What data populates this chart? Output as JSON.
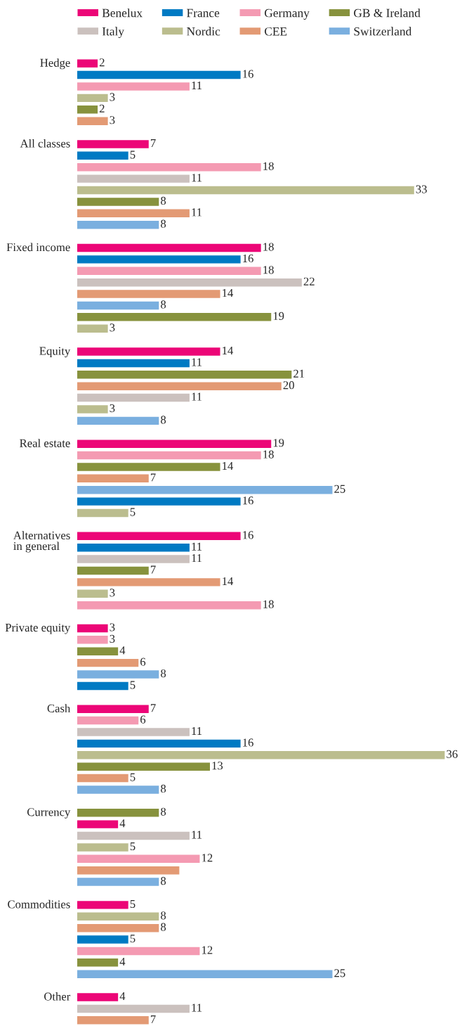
{
  "chart_data": {
    "type": "bar",
    "orientation": "horizontal",
    "legend": "top",
    "categories": [
      "Hedge",
      null,
      null,
      null,
      null,
      null,
      null,
      "All classes",
      null,
      null,
      null,
      null,
      null,
      null,
      null,
      null,
      "Fixed income",
      null,
      null,
      null,
      null,
      null,
      null,
      null,
      null,
      "Equity",
      null,
      null,
      null,
      null,
      null,
      null,
      null,
      "Real estate",
      null,
      null,
      null,
      null,
      null,
      null,
      null,
      "Alternatives\nin general",
      null,
      null,
      null,
      null,
      null,
      null,
      null,
      "Private equity",
      null,
      null,
      null,
      null,
      null,
      null,
      "Cash",
      null,
      null,
      null,
      null,
      null,
      null,
      null,
      null,
      "Currency",
      null,
      null,
      null,
      null,
      null,
      null,
      null,
      "Commodities",
      null,
      null,
      null,
      null,
      null,
      null,
      null,
      "Other",
      null,
      null
    ],
    "series": [
      {
        "name": "Benelux",
        "color": "#ec0677",
        "values": [
          2,
          null,
          null,
          null,
          null,
          null,
          null,
          7,
          null,
          null,
          null,
          null,
          null,
          null,
          null,
          null,
          18,
          null,
          null,
          null,
          null,
          null,
          null,
          null,
          null,
          14,
          null,
          null,
          null,
          null,
          null,
          null,
          null,
          19,
          null,
          null,
          null,
          null,
          null,
          null,
          null,
          16,
          null,
          null,
          null,
          null,
          null,
          null,
          null,
          3,
          null,
          null,
          null,
          null,
          null,
          null,
          7,
          null,
          null,
          null,
          null,
          null,
          null,
          null,
          null,
          null,
          4,
          null,
          null,
          null,
          null,
          null,
          null,
          5,
          null,
          null,
          null,
          null,
          null,
          null,
          null,
          4,
          null,
          null
        ],
        "value_labels": [
          "2",
          null,
          null,
          null,
          null,
          null,
          null,
          "7",
          null,
          null,
          null,
          null,
          null,
          null,
          null,
          null,
          "18",
          null,
          null,
          null,
          null,
          null,
          null,
          null,
          null,
          "14",
          null,
          null,
          null,
          null,
          null,
          null,
          null,
          "19",
          null,
          null,
          null,
          null,
          null,
          null,
          null,
          "16",
          null,
          null,
          null,
          null,
          null,
          null,
          null,
          "3",
          null,
          null,
          null,
          null,
          null,
          null,
          "7",
          null,
          null,
          null,
          null,
          null,
          null,
          null,
          null,
          null,
          "4",
          null,
          null,
          null,
          null,
          null,
          null,
          "5",
          null,
          null,
          null,
          null,
          null,
          null,
          null,
          "4",
          null,
          null
        ]
      },
      {
        "name": "France",
        "color": "#007ac3",
        "values": [
          null,
          16,
          null,
          null,
          null,
          null,
          null,
          null,
          5,
          null,
          null,
          null,
          null,
          null,
          null,
          null,
          null,
          16,
          null,
          null,
          null,
          null,
          null,
          null,
          null,
          null,
          11,
          null,
          null,
          null,
          null,
          null,
          null,
          null,
          null,
          null,
          null,
          null,
          16,
          null,
          null,
          null,
          11,
          null,
          null,
          null,
          null,
          null,
          null,
          null,
          null,
          null,
          null,
          null,
          5,
          null,
          null,
          null,
          null,
          16,
          null,
          null,
          null,
          null,
          null,
          null,
          null,
          null,
          null,
          null,
          null,
          null,
          null,
          null,
          null,
          null,
          5,
          null,
          null,
          null,
          null,
          null,
          null,
          null
        ],
        "value_labels": [
          null,
          "16",
          null,
          null,
          null,
          null,
          null,
          null,
          "5",
          null,
          null,
          null,
          null,
          null,
          null,
          null,
          null,
          "16",
          null,
          null,
          null,
          null,
          null,
          null,
          null,
          null,
          "11",
          null,
          null,
          null,
          null,
          null,
          null,
          null,
          null,
          null,
          null,
          null,
          "16",
          null,
          null,
          null,
          "11",
          null,
          null,
          null,
          null,
          null,
          null,
          null,
          null,
          null,
          null,
          null,
          "5",
          null,
          null,
          null,
          null,
          "16",
          null,
          null,
          null,
          null,
          null,
          null,
          null,
          null,
          null,
          null,
          null,
          null,
          null,
          null,
          null,
          null,
          "5",
          null,
          null,
          null,
          null,
          null,
          null,
          null
        ]
      },
      {
        "name": "Germany",
        "color": "#f49ab2",
        "values": [
          null,
          null,
          11,
          null,
          null,
          null,
          null,
          null,
          null,
          18,
          null,
          null,
          null,
          null,
          null,
          null,
          null,
          null,
          18,
          null,
          null,
          null,
          null,
          null,
          null,
          null,
          null,
          null,
          null,
          null,
          null,
          null,
          null,
          null,
          18,
          null,
          null,
          null,
          null,
          null,
          null,
          null,
          null,
          null,
          null,
          null,
          null,
          18,
          null,
          null,
          3,
          null,
          null,
          null,
          null,
          null,
          null,
          6,
          null,
          null,
          null,
          null,
          null,
          null,
          null,
          null,
          null,
          null,
          null,
          12,
          null,
          null,
          null,
          null,
          null,
          null,
          null,
          12,
          null,
          null,
          null,
          null,
          null,
          null
        ],
        "value_labels": [
          null,
          null,
          "11",
          null,
          null,
          null,
          null,
          null,
          null,
          "18",
          null,
          null,
          null,
          null,
          null,
          null,
          null,
          null,
          "18",
          null,
          null,
          null,
          null,
          null,
          null,
          null,
          null,
          null,
          null,
          null,
          null,
          null,
          null,
          null,
          "18",
          null,
          null,
          null,
          null,
          null,
          null,
          null,
          null,
          null,
          null,
          null,
          null,
          "18",
          null,
          null,
          "3",
          null,
          null,
          null,
          null,
          null,
          null,
          "6",
          null,
          null,
          null,
          null,
          null,
          null,
          null,
          null,
          null,
          null,
          null,
          "12",
          null,
          null,
          null,
          null,
          null,
          null,
          null,
          "12",
          null,
          null,
          null,
          null,
          null,
          null
        ]
      },
      {
        "name": "GB & Ireland",
        "color": "#87923d",
        "values": [
          null,
          null,
          null,
          null,
          2,
          null,
          null,
          null,
          null,
          null,
          null,
          null,
          8,
          null,
          null,
          null,
          null,
          null,
          null,
          null,
          null,
          null,
          19,
          null,
          null,
          null,
          null,
          21,
          null,
          null,
          null,
          null,
          null,
          null,
          null,
          14,
          null,
          null,
          null,
          null,
          null,
          null,
          null,
          null,
          7,
          null,
          null,
          null,
          null,
          null,
          null,
          4,
          null,
          null,
          null,
          null,
          null,
          null,
          null,
          null,
          null,
          13,
          null,
          null,
          null,
          8,
          null,
          null,
          null,
          null,
          null,
          null,
          null,
          null,
          null,
          null,
          null,
          null,
          4,
          null,
          null,
          null,
          null,
          null
        ],
        "value_labels": [
          null,
          null,
          null,
          null,
          "2",
          null,
          null,
          null,
          null,
          null,
          null,
          null,
          "8",
          null,
          null,
          null,
          null,
          null,
          null,
          null,
          null,
          null,
          "19",
          null,
          null,
          null,
          null,
          "21",
          null,
          null,
          null,
          null,
          null,
          null,
          null,
          "14",
          null,
          null,
          null,
          null,
          null,
          null,
          null,
          null,
          "7",
          null,
          null,
          null,
          null,
          null,
          null,
          "4",
          null,
          null,
          null,
          null,
          null,
          null,
          null,
          null,
          null,
          "13",
          null,
          null,
          null,
          "8",
          null,
          null,
          null,
          null,
          null,
          null,
          null,
          null,
          null,
          null,
          null,
          null,
          "4",
          null,
          null,
          null,
          null,
          null
        ]
      },
      {
        "name": "Italy",
        "color": "#cbc1be",
        "values": [
          null,
          null,
          null,
          null,
          null,
          null,
          null,
          null,
          null,
          null,
          11,
          null,
          null,
          null,
          null,
          null,
          null,
          null,
          null,
          22,
          null,
          null,
          null,
          null,
          null,
          null,
          null,
          null,
          null,
          11,
          null,
          null,
          null,
          null,
          null,
          null,
          null,
          null,
          null,
          null,
          null,
          null,
          null,
          11,
          null,
          null,
          null,
          null,
          null,
          null,
          null,
          null,
          null,
          null,
          null,
          null,
          null,
          null,
          11,
          null,
          null,
          null,
          null,
          null,
          null,
          null,
          null,
          11,
          null,
          null,
          null,
          null,
          null,
          null,
          null,
          null,
          null,
          null,
          null,
          null,
          null,
          null,
          11,
          null
        ],
        "value_labels": [
          null,
          null,
          null,
          null,
          null,
          null,
          null,
          null,
          null,
          null,
          "11",
          null,
          null,
          null,
          null,
          null,
          null,
          null,
          null,
          "22",
          null,
          null,
          null,
          null,
          null,
          null,
          null,
          null,
          null,
          "11",
          null,
          null,
          null,
          null,
          null,
          null,
          null,
          null,
          null,
          null,
          null,
          null,
          null,
          "11",
          null,
          null,
          null,
          null,
          null,
          null,
          null,
          null,
          null,
          null,
          null,
          null,
          null,
          null,
          "11",
          null,
          null,
          null,
          null,
          null,
          null,
          null,
          null,
          "11",
          null,
          null,
          null,
          null,
          null,
          null,
          null,
          null,
          null,
          null,
          null,
          null,
          null,
          null,
          "11",
          null
        ]
      },
      {
        "name": "Nordic",
        "color": "#bbbd8e",
        "values": [
          null,
          null,
          null,
          3,
          null,
          null,
          null,
          null,
          null,
          null,
          null,
          33,
          null,
          null,
          null,
          null,
          null,
          null,
          null,
          null,
          null,
          null,
          null,
          3,
          null,
          null,
          null,
          null,
          null,
          null,
          3,
          null,
          null,
          null,
          null,
          null,
          null,
          null,
          null,
          5,
          null,
          null,
          null,
          null,
          null,
          null,
          3,
          null,
          null,
          null,
          null,
          null,
          null,
          null,
          null,
          null,
          null,
          null,
          null,
          null,
          36,
          null,
          null,
          null,
          null,
          null,
          null,
          null,
          5,
          null,
          null,
          null,
          null,
          null,
          8,
          null,
          null,
          null,
          null,
          null,
          null,
          null,
          null,
          null
        ],
        "value_labels": [
          null,
          null,
          null,
          "3",
          null,
          null,
          null,
          null,
          null,
          null,
          null,
          "33",
          null,
          null,
          null,
          null,
          null,
          null,
          null,
          null,
          null,
          null,
          null,
          "3",
          null,
          null,
          null,
          null,
          null,
          null,
          "3",
          null,
          null,
          null,
          null,
          null,
          null,
          null,
          null,
          "5",
          null,
          null,
          null,
          null,
          null,
          null,
          "3",
          null,
          null,
          null,
          null,
          null,
          null,
          null,
          null,
          null,
          null,
          null,
          null,
          null,
          "36",
          null,
          null,
          null,
          null,
          null,
          null,
          null,
          "5",
          null,
          null,
          null,
          null,
          null,
          "8",
          null,
          null,
          null,
          null,
          null,
          null,
          null,
          null,
          null
        ]
      },
      {
        "name": "CEE",
        "color": "#e39a74",
        "values": [
          null,
          null,
          null,
          null,
          null,
          3,
          null,
          null,
          null,
          null,
          null,
          null,
          null,
          11,
          null,
          null,
          null,
          null,
          null,
          null,
          14,
          null,
          null,
          null,
          null,
          null,
          null,
          null,
          20,
          null,
          null,
          null,
          null,
          null,
          null,
          null,
          7,
          null,
          null,
          null,
          null,
          null,
          null,
          null,
          null,
          14,
          null,
          null,
          null,
          null,
          null,
          null,
          6,
          null,
          null,
          null,
          null,
          null,
          null,
          null,
          null,
          null,
          5,
          null,
          null,
          null,
          null,
          null,
          null,
          null,
          10,
          null,
          null,
          null,
          null,
          8,
          null,
          null,
          null,
          null,
          null,
          null,
          null,
          7
        ],
        "value_labels": [
          null,
          null,
          null,
          null,
          null,
          "3",
          null,
          null,
          null,
          null,
          null,
          null,
          null,
          "11",
          null,
          null,
          null,
          null,
          null,
          null,
          "14",
          null,
          null,
          null,
          null,
          null,
          null,
          null,
          "20",
          null,
          null,
          null,
          null,
          null,
          null,
          null,
          "7",
          null,
          null,
          null,
          null,
          null,
          null,
          null,
          null,
          "14",
          null,
          null,
          null,
          null,
          null,
          null,
          "6",
          null,
          null,
          null,
          null,
          null,
          null,
          null,
          null,
          null,
          "5",
          null,
          null,
          null,
          null,
          null,
          null,
          null,
          null,
          null,
          null,
          null,
          null,
          "8",
          null,
          null,
          null,
          null,
          null,
          null,
          null,
          "7"
        ]
      },
      {
        "name": "Switzerland",
        "color": "#7aafdf",
        "values": [
          null,
          null,
          null,
          null,
          null,
          null,
          null,
          null,
          null,
          null,
          null,
          null,
          null,
          null,
          8,
          null,
          null,
          null,
          null,
          null,
          null,
          8,
          null,
          null,
          null,
          null,
          null,
          null,
          null,
          null,
          null,
          8,
          null,
          null,
          null,
          null,
          null,
          25,
          null,
          null,
          null,
          null,
          null,
          null,
          null,
          null,
          null,
          null,
          null,
          null,
          null,
          null,
          null,
          8,
          null,
          null,
          null,
          null,
          null,
          null,
          null,
          null,
          null,
          8,
          null,
          null,
          null,
          null,
          null,
          null,
          null,
          8,
          null,
          null,
          null,
          null,
          null,
          null,
          null,
          25,
          null,
          null,
          null,
          null
        ],
        "value_labels": [
          null,
          null,
          null,
          null,
          null,
          null,
          null,
          null,
          null,
          null,
          null,
          null,
          null,
          null,
          "8",
          null,
          null,
          null,
          null,
          null,
          null,
          "8",
          null,
          null,
          null,
          null,
          null,
          null,
          null,
          null,
          null,
          "8",
          null,
          null,
          null,
          null,
          null,
          "25",
          null,
          null,
          null,
          null,
          null,
          null,
          null,
          null,
          null,
          null,
          null,
          null,
          null,
          null,
          null,
          "8",
          null,
          null,
          null,
          null,
          null,
          null,
          null,
          null,
          null,
          "8",
          null,
          null,
          null,
          null,
          null,
          null,
          null,
          "8",
          null,
          null,
          null,
          null,
          null,
          null,
          null,
          "25",
          null,
          null,
          null,
          null
        ]
      }
    ]
  }
}
